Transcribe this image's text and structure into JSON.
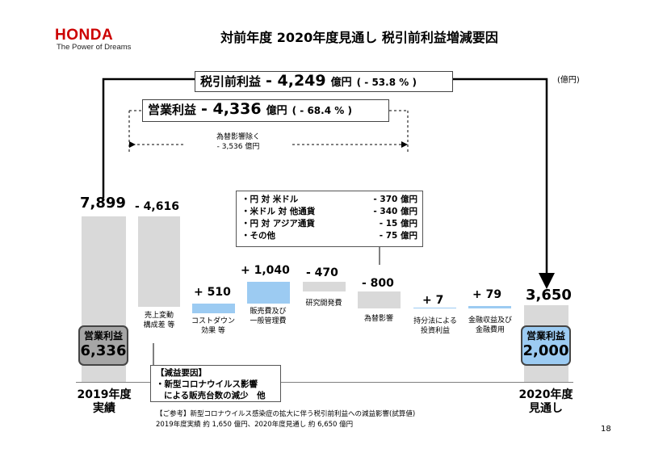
{
  "header": {
    "logo": "HONDA",
    "tagline": "The Power of Dreams",
    "title": "対前年度 2020年度見通し 税引前利益増減要因"
  },
  "unit": "(億円)",
  "pretax_box": {
    "label": "税引前利益",
    "value": "- 4,249",
    "yen": "億円",
    "pct": "( - 53.8 % )"
  },
  "operating_box": {
    "label": "営業利益",
    "value": "- 4,336",
    "yen": "億円",
    "pct": "( - 68.4 % )"
  },
  "fx_excluded": {
    "line1": "為替影響除く",
    "line2": "- 3,536 億円"
  },
  "fx_detail": [
    {
      "name": "・円 対 米ドル",
      "value": "- 370 億円"
    },
    {
      "name": "・米ドル 対 他通貨",
      "value": "- 340 億円"
    },
    {
      "name": "・円 対 アジア通貨",
      "value": "- 15 億円"
    },
    {
      "name": "・その他",
      "value": "- 75 億円"
    }
  ],
  "decrease_reason": {
    "title": "【減益要因】",
    "line1": "・新型コロナウイルス影響",
    "line2": "による販売台数の減少　他"
  },
  "start_pill": {
    "label": "営業利益",
    "value": "6,336"
  },
  "end_pill": {
    "label": "営業利益",
    "value": "2,000"
  },
  "years": {
    "start_line1": "2019年度",
    "start_line2": "実績",
    "end_line1": "2020年度",
    "end_line2": "見通し"
  },
  "reference": {
    "line1": "【ご参考】新型コロナウイルス感染症の拡大に伴う税引前利益への減益影響(試算値)",
    "line2": "2019年度実績 約 1,650 億円、2020年度見通し 約 6,650 億円"
  },
  "page_number": "18",
  "colors": {
    "brand": "#cc0000",
    "increase": "#9ccbf2",
    "decrease": "#d9d9d9",
    "pill_start": "#a6a6a6"
  },
  "chart_data": {
    "type": "bar",
    "subtype": "waterfall",
    "categories": [
      "2019年度実績",
      "売上変動構成差 等",
      "コストダウン効果 等",
      "販売費及び一般管理費",
      "研究開発費",
      "為替影響",
      "持分法による投資利益",
      "金融収益及び金融費用",
      "2020年度見通し"
    ],
    "category_labels": [
      [
        "2019年度",
        "実績"
      ],
      [
        "売上変動",
        "構成差 等"
      ],
      [
        "コストダウン",
        "効果 等"
      ],
      [
        "販売費及び",
        "一般管理費"
      ],
      [
        "研究開発費"
      ],
      [
        "為替影響"
      ],
      [
        "持分法による",
        "投資利益"
      ],
      [
        "金融収益及び",
        "金融費用"
      ],
      [
        "2020年度",
        "見通し"
      ]
    ],
    "values": [
      7899,
      -4616,
      510,
      1040,
      -470,
      -800,
      7,
      79,
      3650
    ],
    "labels": [
      "7,899",
      "- 4,616",
      "+ 510",
      "+ 1,040",
      "- 470",
      "- 800",
      "+ 7",
      "+ 79",
      "3,650"
    ],
    "kind": [
      "total",
      "change",
      "change",
      "change",
      "change",
      "change",
      "change",
      "change",
      "total"
    ],
    "unit": "億円"
  }
}
